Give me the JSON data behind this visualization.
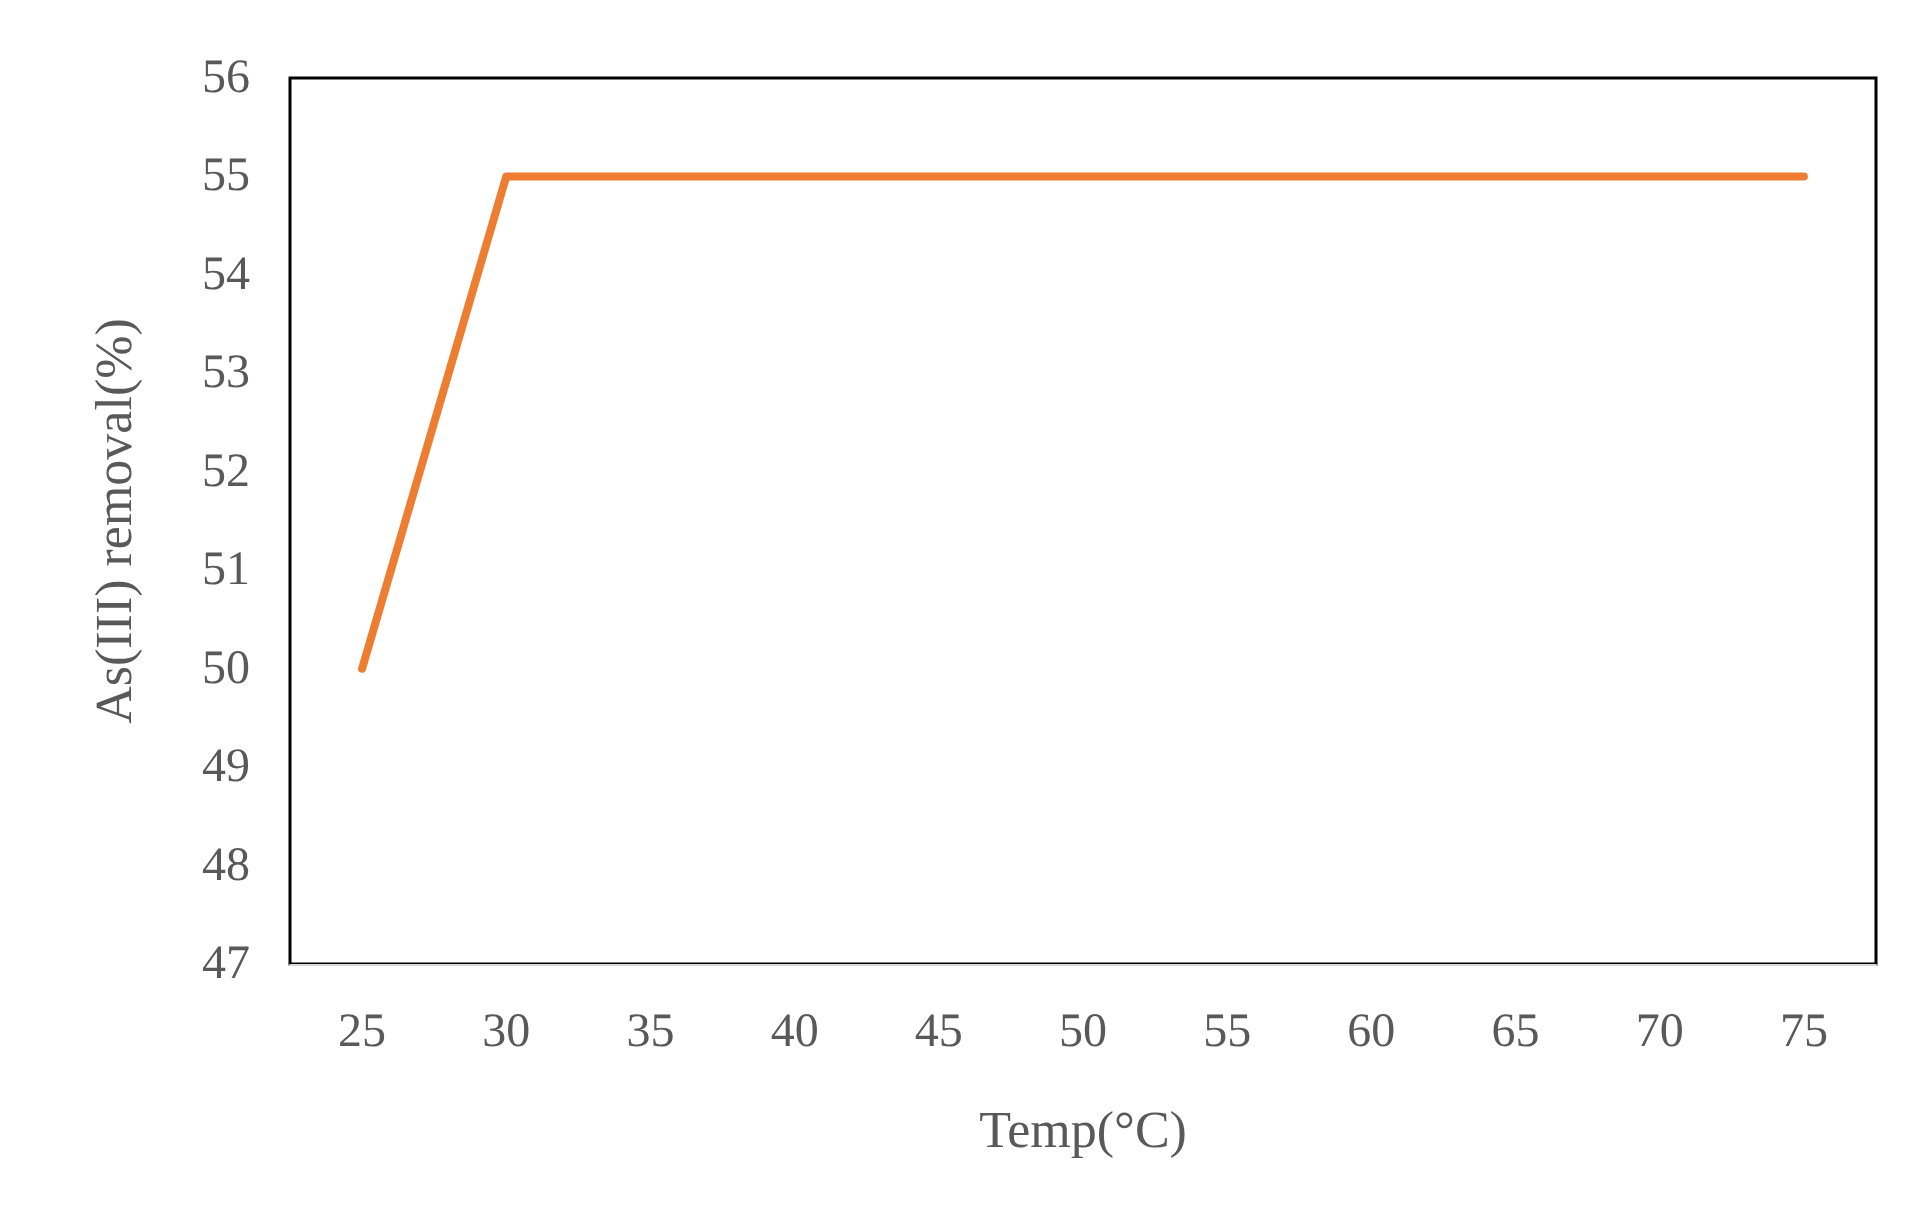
{
  "chart_data": {
    "type": "line",
    "xlabel": "Temp(°C)",
    "ylabel": "As(III) removal(%)",
    "categories": [
      "25",
      "30",
      "35",
      "40",
      "45",
      "50",
      "55",
      "60",
      "65",
      "70",
      "75"
    ],
    "series": [
      {
        "color": "#ed7d31",
        "values": [
          50,
          55,
          55,
          55,
          55,
          55,
          55,
          55,
          55,
          55,
          55
        ]
      }
    ],
    "ylim": [
      47,
      56
    ],
    "yticks": [
      47,
      48,
      49,
      50,
      51,
      52,
      53,
      54,
      55,
      56
    ],
    "marker": "none",
    "line_style": "solid"
  }
}
